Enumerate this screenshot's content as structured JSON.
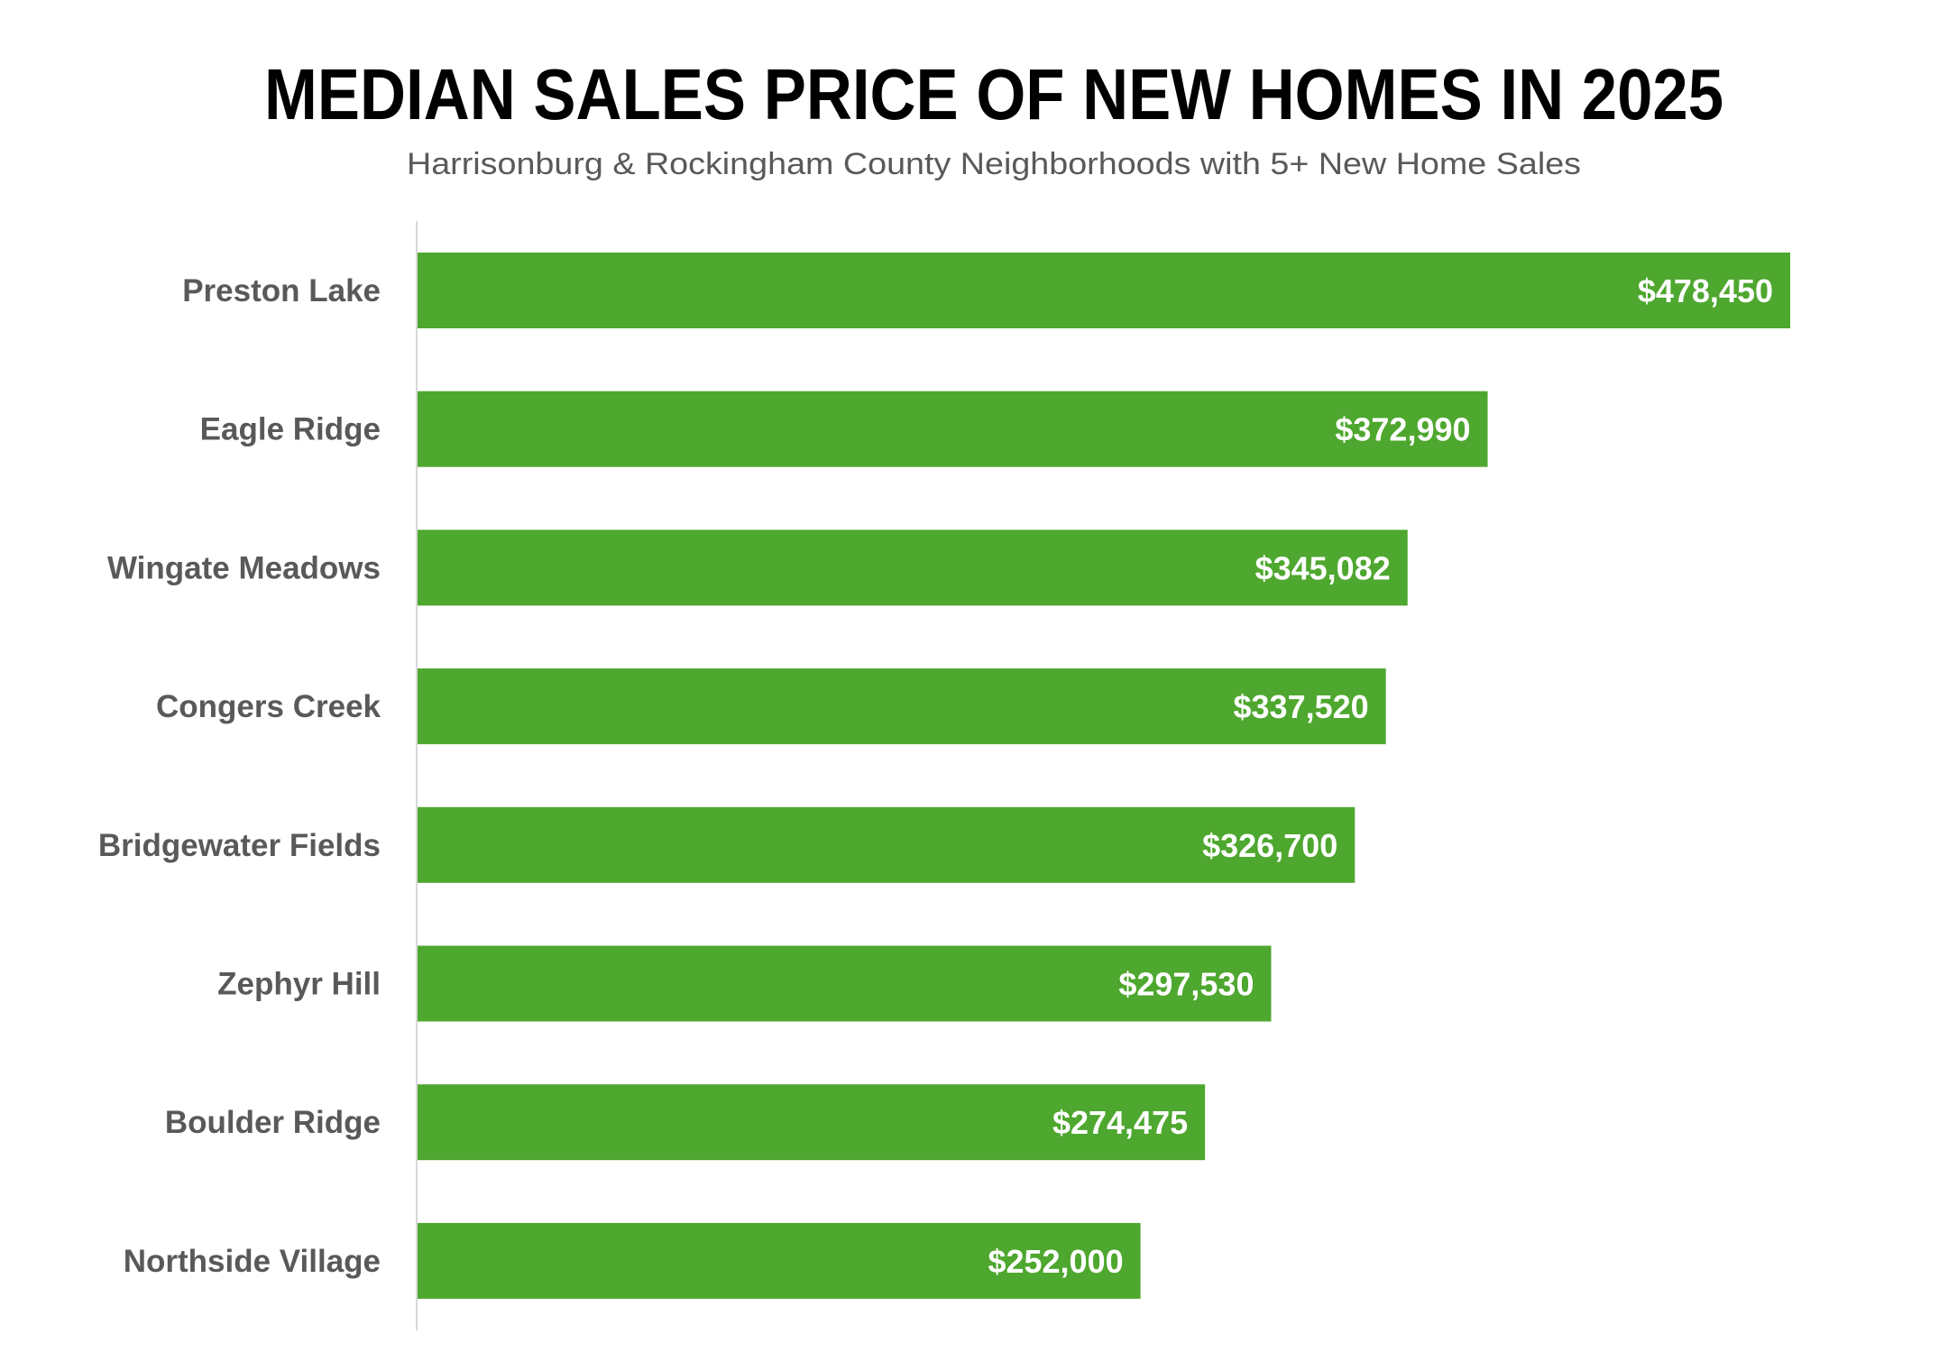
{
  "chart_data": {
    "type": "bar",
    "orientation": "horizontal",
    "title": "MEDIAN SALES PRICE OF NEW HOMES IN 2025",
    "subtitle": "Harrisonburg & Rockingham County Neighborhoods with 5+ New Home Sales",
    "xlabel": "",
    "ylabel": "",
    "xlim": [
      0,
      478450
    ],
    "grid": false,
    "legend": "none",
    "bar_color": "#4EA72E",
    "categories": [
      "Preston Lake",
      "Eagle Ridge",
      "Wingate Meadows",
      "Congers Creek",
      "Bridgewater Fields",
      "Zephyr Hill",
      "Boulder Ridge",
      "Northside Village"
    ],
    "values": [
      478450,
      372990,
      345082,
      337520,
      326700,
      297530,
      274475,
      252000
    ],
    "data_labels": [
      "$478,450",
      "$372,990",
      "$345,082",
      "$337,520",
      "$326,700",
      "$297,530",
      "$274,475",
      "$252,000"
    ]
  }
}
